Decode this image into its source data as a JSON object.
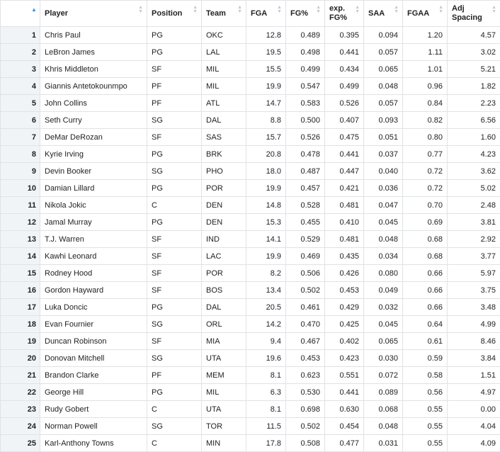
{
  "sort_indicator": {
    "column": "index",
    "direction": "ascending",
    "color": "#3b8fe0"
  },
  "columns": [
    {
      "key": "player",
      "label": "Player"
    },
    {
      "key": "position",
      "label": "Position"
    },
    {
      "key": "team",
      "label": "Team"
    },
    {
      "key": "fga",
      "label": "FGA"
    },
    {
      "key": "fgpct",
      "label": "FG%"
    },
    {
      "key": "expfg",
      "label": "exp. FG%"
    },
    {
      "key": "saa",
      "label": "SAA"
    },
    {
      "key": "fgaa",
      "label": "FGAA"
    },
    {
      "key": "adj",
      "label": "Adj Spacing"
    }
  ],
  "rows": [
    [
      "1",
      "Chris Paul",
      "PG",
      "OKC",
      "12.8",
      "0.489",
      "0.395",
      "0.094",
      "1.20",
      "4.57"
    ],
    [
      "2",
      "LeBron James",
      "PG",
      "LAL",
      "19.5",
      "0.498",
      "0.441",
      "0.057",
      "1.11",
      "3.02"
    ],
    [
      "3",
      "Khris Middleton",
      "SF",
      "MIL",
      "15.5",
      "0.499",
      "0.434",
      "0.065",
      "1.01",
      "5.21"
    ],
    [
      "4",
      "Giannis Antetokounmpo",
      "PF",
      "MIL",
      "19.9",
      "0.547",
      "0.499",
      "0.048",
      "0.96",
      "1.82"
    ],
    [
      "5",
      "John Collins",
      "PF",
      "ATL",
      "14.7",
      "0.583",
      "0.526",
      "0.057",
      "0.84",
      "2.23"
    ],
    [
      "6",
      "Seth Curry",
      "SG",
      "DAL",
      "8.8",
      "0.500",
      "0.407",
      "0.093",
      "0.82",
      "6.56"
    ],
    [
      "7",
      "DeMar DeRozan",
      "SF",
      "SAS",
      "15.7",
      "0.526",
      "0.475",
      "0.051",
      "0.80",
      "1.60"
    ],
    [
      "8",
      "Kyrie Irving",
      "PG",
      "BRK",
      "20.8",
      "0.478",
      "0.441",
      "0.037",
      "0.77",
      "4.23"
    ],
    [
      "9",
      "Devin Booker",
      "SG",
      "PHO",
      "18.0",
      "0.487",
      "0.447",
      "0.040",
      "0.72",
      "3.62"
    ],
    [
      "10",
      "Damian Lillard",
      "PG",
      "POR",
      "19.9",
      "0.457",
      "0.421",
      "0.036",
      "0.72",
      "5.02"
    ],
    [
      "11",
      "Nikola Jokic",
      "C",
      "DEN",
      "14.8",
      "0.528",
      "0.481",
      "0.047",
      "0.70",
      "2.48"
    ],
    [
      "12",
      "Jamal Murray",
      "PG",
      "DEN",
      "15.3",
      "0.455",
      "0.410",
      "0.045",
      "0.69",
      "3.81"
    ],
    [
      "13",
      "T.J. Warren",
      "SF",
      "IND",
      "14.1",
      "0.529",
      "0.481",
      "0.048",
      "0.68",
      "2.92"
    ],
    [
      "14",
      "Kawhi Leonard",
      "SF",
      "LAC",
      "19.9",
      "0.469",
      "0.435",
      "0.034",
      "0.68",
      "3.77"
    ],
    [
      "15",
      "Rodney Hood",
      "SF",
      "POR",
      "8.2",
      "0.506",
      "0.426",
      "0.080",
      "0.66",
      "5.97"
    ],
    [
      "16",
      "Gordon Hayward",
      "SF",
      "BOS",
      "13.4",
      "0.502",
      "0.453",
      "0.049",
      "0.66",
      "3.75"
    ],
    [
      "17",
      "Luka Doncic",
      "PG",
      "DAL",
      "20.5",
      "0.461",
      "0.429",
      "0.032",
      "0.66",
      "3.48"
    ],
    [
      "18",
      "Evan Fournier",
      "SG",
      "ORL",
      "14.2",
      "0.470",
      "0.425",
      "0.045",
      "0.64",
      "4.99"
    ],
    [
      "19",
      "Duncan Robinson",
      "SF",
      "MIA",
      "9.4",
      "0.467",
      "0.402",
      "0.065",
      "0.61",
      "8.46"
    ],
    [
      "20",
      "Donovan Mitchell",
      "SG",
      "UTA",
      "19.6",
      "0.453",
      "0.423",
      "0.030",
      "0.59",
      "3.84"
    ],
    [
      "21",
      "Brandon Clarke",
      "PF",
      "MEM",
      "8.1",
      "0.623",
      "0.551",
      "0.072",
      "0.58",
      "1.51"
    ],
    [
      "22",
      "George Hill",
      "PG",
      "MIL",
      "6.3",
      "0.530",
      "0.441",
      "0.089",
      "0.56",
      "4.97"
    ],
    [
      "23",
      "Rudy Gobert",
      "C",
      "UTA",
      "8.1",
      "0.698",
      "0.630",
      "0.068",
      "0.55",
      "0.00"
    ],
    [
      "24",
      "Norman Powell",
      "SG",
      "TOR",
      "11.5",
      "0.502",
      "0.454",
      "0.048",
      "0.55",
      "4.04"
    ],
    [
      "25",
      "Karl-Anthony Towns",
      "C",
      "MIN",
      "17.8",
      "0.508",
      "0.477",
      "0.031",
      "0.55",
      "4.09"
    ]
  ]
}
